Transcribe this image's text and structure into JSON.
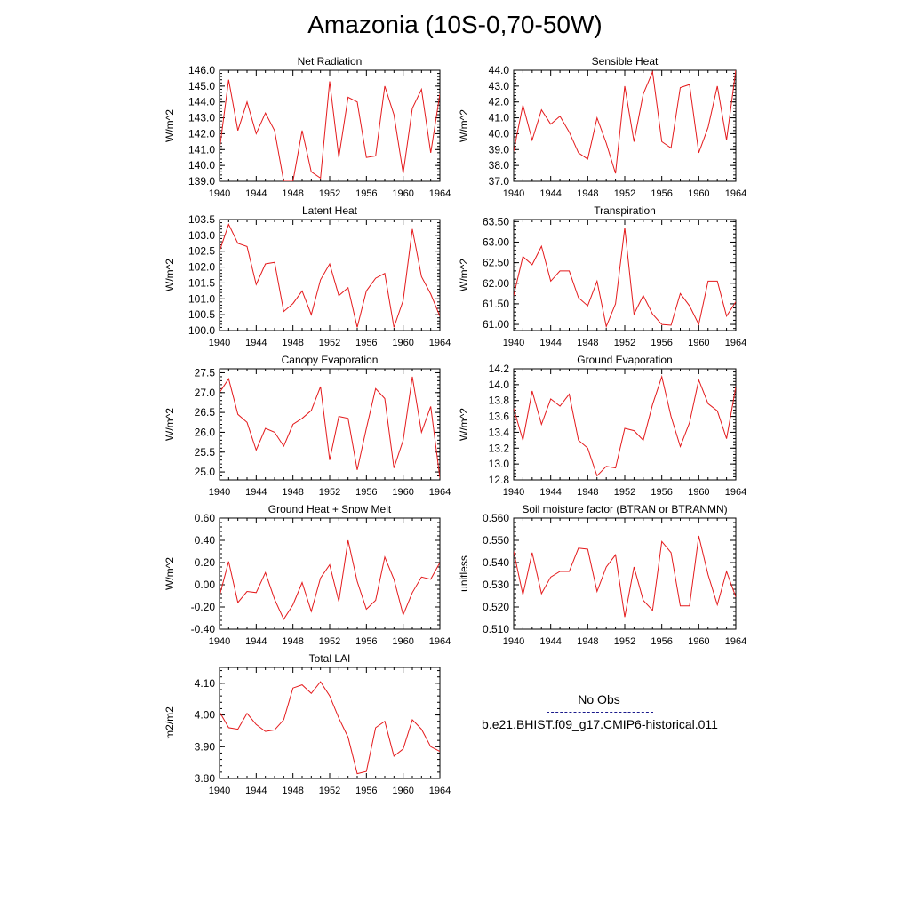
{
  "title": "Amazonia (10S-0,70-50W)",
  "legend": {
    "obs_label": "No Obs",
    "model_label": "b.e21.BHIST.f09_g17.CMIP6-historical.011",
    "obs_color": "#1a1a8c",
    "model_color": "#e41a1c"
  },
  "chart_data": [
    {
      "type": "line",
      "title": "Net Radiation",
      "ylabel": "W/m^2",
      "xlim": [
        1940,
        1964
      ],
      "ylim": [
        139.0,
        146.0
      ],
      "yticks": [
        139.0,
        140.0,
        141.0,
        142.0,
        143.0,
        144.0,
        145.0,
        146.0
      ],
      "ytick_labels": [
        "139.0",
        "140.0",
        "141.0",
        "142.0",
        "143.0",
        "144.0",
        "145.0",
        "146.0"
      ],
      "xticks": [
        1940,
        1944,
        1948,
        1952,
        1956,
        1960,
        1964
      ],
      "x": [
        1940,
        1941,
        1942,
        1943,
        1944,
        1945,
        1946,
        1947,
        1948,
        1949,
        1950,
        1951,
        1952,
        1953,
        1954,
        1955,
        1956,
        1957,
        1958,
        1959,
        1960,
        1961,
        1962,
        1963,
        1964
      ],
      "values": [
        141.0,
        145.4,
        142.2,
        144.0,
        142.0,
        143.3,
        142.2,
        139.0,
        139.0,
        142.2,
        139.6,
        139.2,
        145.3,
        140.5,
        144.3,
        144.0,
        140.5,
        140.6,
        145.0,
        143.2,
        139.5,
        143.6,
        144.8,
        140.8,
        144.5
      ]
    },
    {
      "type": "line",
      "title": "Sensible Heat",
      "ylabel": "W/m^2",
      "xlim": [
        1940,
        1964
      ],
      "ylim": [
        37.0,
        44.0
      ],
      "yticks": [
        37.0,
        38.0,
        39.0,
        40.0,
        41.0,
        42.0,
        43.0,
        44.0
      ],
      "ytick_labels": [
        "37.0",
        "38.0",
        "39.0",
        "40.0",
        "41.0",
        "42.0",
        "43.0",
        "44.0"
      ],
      "xticks": [
        1940,
        1944,
        1948,
        1952,
        1956,
        1960,
        1964
      ],
      "x": [
        1940,
        1941,
        1942,
        1943,
        1944,
        1945,
        1946,
        1947,
        1948,
        1949,
        1950,
        1951,
        1952,
        1953,
        1954,
        1955,
        1956,
        1957,
        1958,
        1959,
        1960,
        1961,
        1962,
        1963,
        1964
      ],
      "values": [
        38.9,
        41.8,
        39.6,
        41.5,
        40.6,
        41.1,
        40.1,
        38.8,
        38.4,
        41.0,
        39.4,
        37.5,
        43.0,
        39.5,
        42.5,
        43.9,
        39.5,
        39.1,
        42.9,
        43.1,
        38.8,
        40.4,
        43.0,
        39.6,
        44.0
      ]
    },
    {
      "type": "line",
      "title": "Latent Heat",
      "ylabel": "W/m^2",
      "xlim": [
        1940,
        1964
      ],
      "ylim": [
        100.0,
        103.5
      ],
      "yticks": [
        100.0,
        100.5,
        101.0,
        101.5,
        102.0,
        102.5,
        103.0,
        103.5
      ],
      "ytick_labels": [
        "100.0",
        "100.5",
        "101.0",
        "101.5",
        "102.0",
        "102.5",
        "103.0",
        "103.5"
      ],
      "xticks": [
        1940,
        1944,
        1948,
        1952,
        1956,
        1960,
        1964
      ],
      "x": [
        1940,
        1941,
        1942,
        1943,
        1944,
        1945,
        1946,
        1947,
        1948,
        1949,
        1950,
        1951,
        1952,
        1953,
        1954,
        1955,
        1956,
        1957,
        1958,
        1959,
        1960,
        1961,
        1962,
        1963,
        1964
      ],
      "values": [
        102.5,
        103.35,
        102.75,
        102.65,
        101.45,
        102.1,
        102.15,
        100.6,
        100.85,
        101.25,
        100.5,
        101.6,
        102.1,
        101.1,
        101.35,
        100.1,
        101.25,
        101.65,
        101.8,
        100.1,
        100.95,
        103.2,
        101.7,
        101.15,
        100.45
      ]
    },
    {
      "type": "line",
      "title": "Transpiration",
      "ylabel": "W/m^2",
      "xlim": [
        1940,
        1964
      ],
      "ylim": [
        60.85,
        63.55
      ],
      "yticks": [
        61.0,
        61.5,
        62.0,
        62.5,
        63.0,
        63.5
      ],
      "ytick_labels": [
        "61.00",
        "61.50",
        "62.00",
        "62.50",
        "63.00",
        "63.50"
      ],
      "xticks": [
        1940,
        1944,
        1948,
        1952,
        1956,
        1960,
        1964
      ],
      "x": [
        1940,
        1941,
        1942,
        1943,
        1944,
        1945,
        1946,
        1947,
        1948,
        1949,
        1950,
        1951,
        1952,
        1953,
        1954,
        1955,
        1956,
        1957,
        1958,
        1959,
        1960,
        1961,
        1962,
        1963,
        1964
      ],
      "values": [
        61.7,
        62.65,
        62.45,
        62.9,
        62.05,
        62.3,
        62.3,
        61.65,
        61.45,
        62.05,
        60.95,
        61.5,
        63.35,
        61.25,
        61.7,
        61.25,
        61.0,
        60.98,
        61.75,
        61.45,
        61.0,
        62.05,
        62.05,
        61.2,
        61.55
      ]
    },
    {
      "type": "line",
      "title": "Canopy Evaporation",
      "ylabel": "W/m^2",
      "xlim": [
        1940,
        1964
      ],
      "ylim": [
        24.8,
        27.6
      ],
      "yticks": [
        25.0,
        25.5,
        26.0,
        26.5,
        27.0,
        27.5
      ],
      "ytick_labels": [
        "25.0",
        "25.5",
        "26.0",
        "26.5",
        "27.0",
        "27.5"
      ],
      "xticks": [
        1940,
        1944,
        1948,
        1952,
        1956,
        1960,
        1964
      ],
      "x": [
        1940,
        1941,
        1942,
        1943,
        1944,
        1945,
        1946,
        1947,
        1948,
        1949,
        1950,
        1951,
        1952,
        1953,
        1954,
        1955,
        1956,
        1957,
        1958,
        1959,
        1960,
        1961,
        1962,
        1963,
        1964
      ],
      "values": [
        27.0,
        27.35,
        26.45,
        26.25,
        25.55,
        26.1,
        26.0,
        25.65,
        26.2,
        26.35,
        26.55,
        27.15,
        25.3,
        26.4,
        26.35,
        25.05,
        26.1,
        27.1,
        26.85,
        25.1,
        25.8,
        27.4,
        26.0,
        26.65,
        24.85
      ]
    },
    {
      "type": "line",
      "title": "Ground Evaporation",
      "ylabel": "W/m^2",
      "xlim": [
        1940,
        1964
      ],
      "ylim": [
        12.8,
        14.2
      ],
      "yticks": [
        12.8,
        13.0,
        13.2,
        13.4,
        13.6,
        13.8,
        14.0,
        14.2
      ],
      "ytick_labels": [
        "12.8",
        "13.0",
        "13.2",
        "13.4",
        "13.6",
        "13.8",
        "14.0",
        "14.2"
      ],
      "xticks": [
        1940,
        1944,
        1948,
        1952,
        1956,
        1960,
        1964
      ],
      "x": [
        1940,
        1941,
        1942,
        1943,
        1944,
        1945,
        1946,
        1947,
        1948,
        1949,
        1950,
        1951,
        1952,
        1953,
        1954,
        1955,
        1956,
        1957,
        1958,
        1959,
        1960,
        1961,
        1962,
        1963,
        1964
      ],
      "values": [
        13.7,
        13.3,
        13.92,
        13.5,
        13.82,
        13.73,
        13.88,
        13.3,
        13.2,
        12.85,
        12.97,
        12.95,
        13.45,
        13.42,
        13.3,
        13.75,
        14.1,
        13.6,
        13.22,
        13.52,
        14.06,
        13.76,
        13.67,
        13.32,
        13.97
      ]
    },
    {
      "type": "line",
      "title": "Ground Heat + Snow Melt",
      "ylabel": "W/m^2",
      "xlim": [
        1940,
        1964
      ],
      "ylim": [
        -0.4,
        0.6
      ],
      "yticks": [
        -0.4,
        -0.2,
        0.0,
        0.2,
        0.4,
        0.6
      ],
      "ytick_labels": [
        "-0.40",
        "-0.20",
        "0.00",
        "0.20",
        "0.40",
        "0.60"
      ],
      "xticks": [
        1940,
        1944,
        1948,
        1952,
        1956,
        1960,
        1964
      ],
      "x": [
        1940,
        1941,
        1942,
        1943,
        1944,
        1945,
        1946,
        1947,
        1948,
        1949,
        1950,
        1951,
        1952,
        1953,
        1954,
        1955,
        1956,
        1957,
        1958,
        1959,
        1960,
        1961,
        1962,
        1963,
        1964
      ],
      "values": [
        -0.1,
        0.21,
        -0.16,
        -0.06,
        -0.07,
        0.11,
        -0.13,
        -0.31,
        -0.18,
        0.02,
        -0.24,
        0.06,
        0.18,
        -0.15,
        0.4,
        0.03,
        -0.22,
        -0.14,
        0.25,
        0.05,
        -0.27,
        -0.07,
        0.07,
        0.05,
        0.2
      ]
    },
    {
      "type": "line",
      "title": "Soil moisture factor (BTRAN or BTRANMN)",
      "ylabel": "unitless",
      "xlim": [
        1940,
        1964
      ],
      "ylim": [
        0.51,
        0.56
      ],
      "yticks": [
        0.51,
        0.52,
        0.53,
        0.54,
        0.55,
        0.56
      ],
      "ytick_labels": [
        "0.510",
        "0.520",
        "0.530",
        "0.540",
        "0.550",
        "0.560"
      ],
      "xticks": [
        1940,
        1944,
        1948,
        1952,
        1956,
        1960,
        1964
      ],
      "x": [
        1940,
        1941,
        1942,
        1943,
        1944,
        1945,
        1946,
        1947,
        1948,
        1949,
        1950,
        1951,
        1952,
        1953,
        1954,
        1955,
        1956,
        1957,
        1958,
        1959,
        1960,
        1961,
        1962,
        1963,
        1964
      ],
      "values": [
        0.545,
        0.5255,
        0.5445,
        0.526,
        0.5335,
        0.536,
        0.536,
        0.5465,
        0.546,
        0.527,
        0.538,
        0.5435,
        0.5155,
        0.538,
        0.523,
        0.5185,
        0.5495,
        0.5445,
        0.5205,
        0.5205,
        0.552,
        0.5345,
        0.521,
        0.536,
        0.5245
      ]
    },
    {
      "type": "line",
      "title": "Total LAI",
      "ylabel": "m2/m2",
      "xlim": [
        1940,
        1964
      ],
      "ylim": [
        3.8,
        4.15
      ],
      "yticks": [
        3.8,
        3.9,
        4.0,
        4.1
      ],
      "ytick_labels": [
        "3.80",
        "3.90",
        "4.00",
        "4.10"
      ],
      "xticks": [
        1940,
        1944,
        1948,
        1952,
        1956,
        1960,
        1964
      ],
      "x": [
        1940,
        1941,
        1942,
        1943,
        1944,
        1945,
        1946,
        1947,
        1948,
        1949,
        1950,
        1951,
        1952,
        1953,
        1954,
        1955,
        1956,
        1957,
        1958,
        1959,
        1960,
        1961,
        1962,
        1963,
        1964
      ],
      "values": [
        4.01,
        3.96,
        3.955,
        4.005,
        3.97,
        3.948,
        3.953,
        3.985,
        4.085,
        4.095,
        4.068,
        4.105,
        4.06,
        3.99,
        3.93,
        3.815,
        3.822,
        3.96,
        3.98,
        3.87,
        3.893,
        3.985,
        3.955,
        3.9,
        3.885
      ]
    }
  ]
}
